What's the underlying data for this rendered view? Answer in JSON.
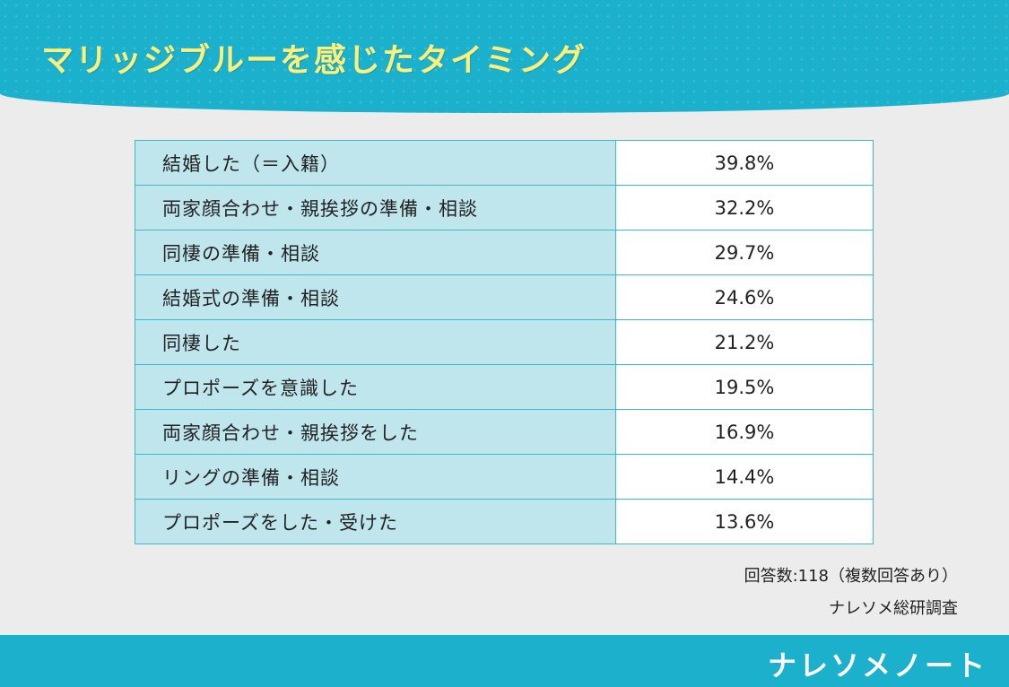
{
  "header": {
    "title": "マリッジブルーを感じたタイミング"
  },
  "chart_data": {
    "type": "table",
    "title": "マリッジブルーを感じたタイミング",
    "rows": [
      {
        "label": "結婚した（＝入籍）",
        "value": "39.8%"
      },
      {
        "label": "両家顔合わせ・親挨拶の準備・相談",
        "value": "32.2%"
      },
      {
        "label": "同棲の準備・相談",
        "value": "29.7%"
      },
      {
        "label": "結婚式の準備・相談",
        "value": "24.6%"
      },
      {
        "label": "同棲した",
        "value": "21.2%"
      },
      {
        "label": "プロポーズを意識した",
        "value": "19.5%"
      },
      {
        "label": "両家顔合わせ・親挨拶をした",
        "value": "16.9%"
      },
      {
        "label": "リングの準備・相談",
        "value": "14.4%"
      },
      {
        "label": "プロポーズをした・受けた",
        "value": "13.6%"
      }
    ]
  },
  "notes": {
    "respondents": "回答数:118（複数回答あり）",
    "source": "ナレソメ総研調査"
  },
  "footer": {
    "brand": "ナレソメノート"
  },
  "colors": {
    "accent": "#1bb1cd",
    "title_text": "#fdf07a",
    "label_cell": "#bfe5ed",
    "border": "#3db9cf",
    "background": "#ececec"
  }
}
